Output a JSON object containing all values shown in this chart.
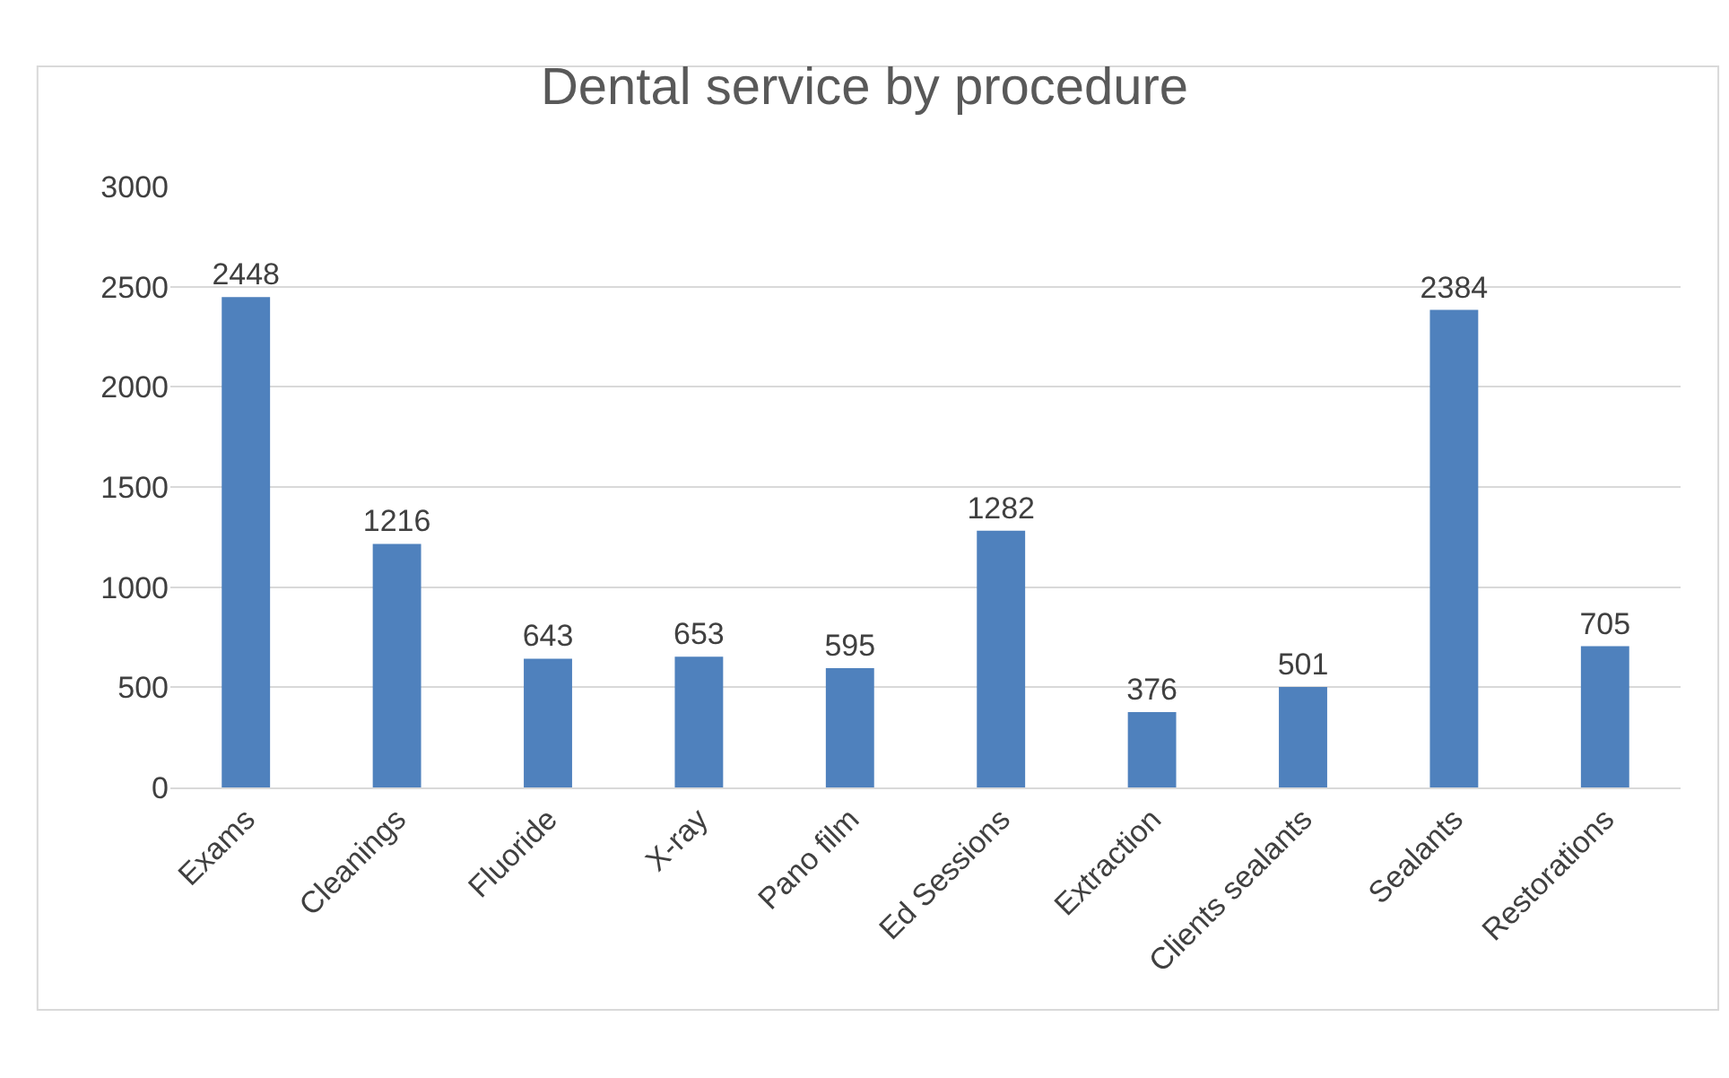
{
  "chart_data": {
    "type": "bar",
    "title": "Dental service by procedure",
    "categories": [
      "Exams",
      "Cleanings",
      "Fluoride",
      "X-ray",
      "Pano film",
      "Ed Sessions",
      "Extraction",
      "Clients sealants",
      "Sealants",
      "Restorations"
    ],
    "values": [
      2448,
      1216,
      643,
      653,
      595,
      1282,
      376,
      501,
      2384,
      705
    ],
    "color": "#4f81bd",
    "ylim": [
      0,
      3000
    ],
    "yticks": [
      0,
      500,
      1000,
      1500,
      2000,
      2500,
      3000
    ],
    "grid": "y",
    "data_labels": true
  }
}
